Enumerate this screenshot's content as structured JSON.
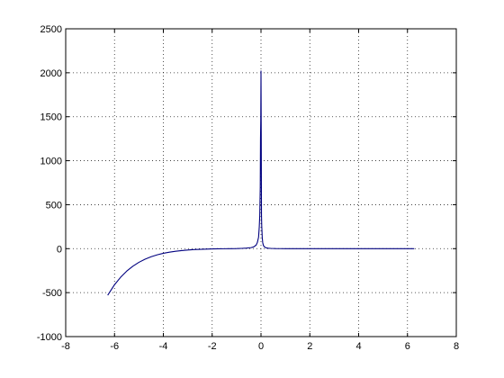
{
  "chart_data": {
    "type": "line",
    "title": "",
    "xlabel": "",
    "ylabel": "",
    "xlim": [
      -8,
      8
    ],
    "ylim": [
      -1000,
      2500
    ],
    "xticks": [
      -8,
      -6,
      -4,
      -2,
      0,
      2,
      4,
      6,
      8
    ],
    "yticks": [
      -1000,
      -500,
      0,
      500,
      1000,
      1500,
      2000,
      2500
    ],
    "xtick_labels": [
      "-8",
      "-6",
      "-4",
      "-2",
      "0",
      "2",
      "4",
      "6",
      "8"
    ],
    "ytick_labels": [
      "-1000",
      "-500",
      "0",
      "500",
      "1000",
      "1500",
      "2000",
      "2500"
    ],
    "grid": true,
    "legend": "none",
    "series": [
      {
        "color": "#00007f",
        "x": [
          -6.28,
          -6.0,
          -5.75,
          -5.5,
          -5.25,
          -5.0,
          -4.75,
          -4.5,
          -4.25,
          -4.0,
          -3.75,
          -3.5,
          -3.25,
          -3.0,
          -2.75,
          -2.5,
          -2.25,
          -2.0,
          -1.75,
          -1.5,
          -1.25,
          -1.0,
          -0.8,
          -0.6,
          -0.4,
          -0.3,
          -0.2,
          -0.15,
          -0.1,
          -0.07,
          -0.05,
          -0.03,
          -0.02,
          -0.01,
          0.0,
          0.01,
          0.02,
          0.03,
          0.05,
          0.07,
          0.1,
          0.15,
          0.2,
          0.3,
          0.4,
          0.6,
          0.8,
          1.0,
          1.5,
          2.0,
          3.0,
          4.0,
          5.0,
          6.0,
          6.28
        ],
        "y": [
          -530,
          -410,
          -325,
          -255,
          -200,
          -155,
          -120,
          -92,
          -70,
          -53,
          -40,
          -30,
          -22,
          -16,
          -11,
          -8,
          -5,
          -3,
          -2,
          -1,
          0,
          1,
          3,
          6,
          12,
          20,
          40,
          70,
          130,
          250,
          380,
          700,
          1250,
          1450,
          2020,
          1300,
          380,
          260,
          130,
          70,
          35,
          18,
          10,
          5,
          3,
          1,
          0.5,
          0,
          0,
          0,
          0,
          0,
          0,
          0,
          0
        ]
      }
    ]
  }
}
